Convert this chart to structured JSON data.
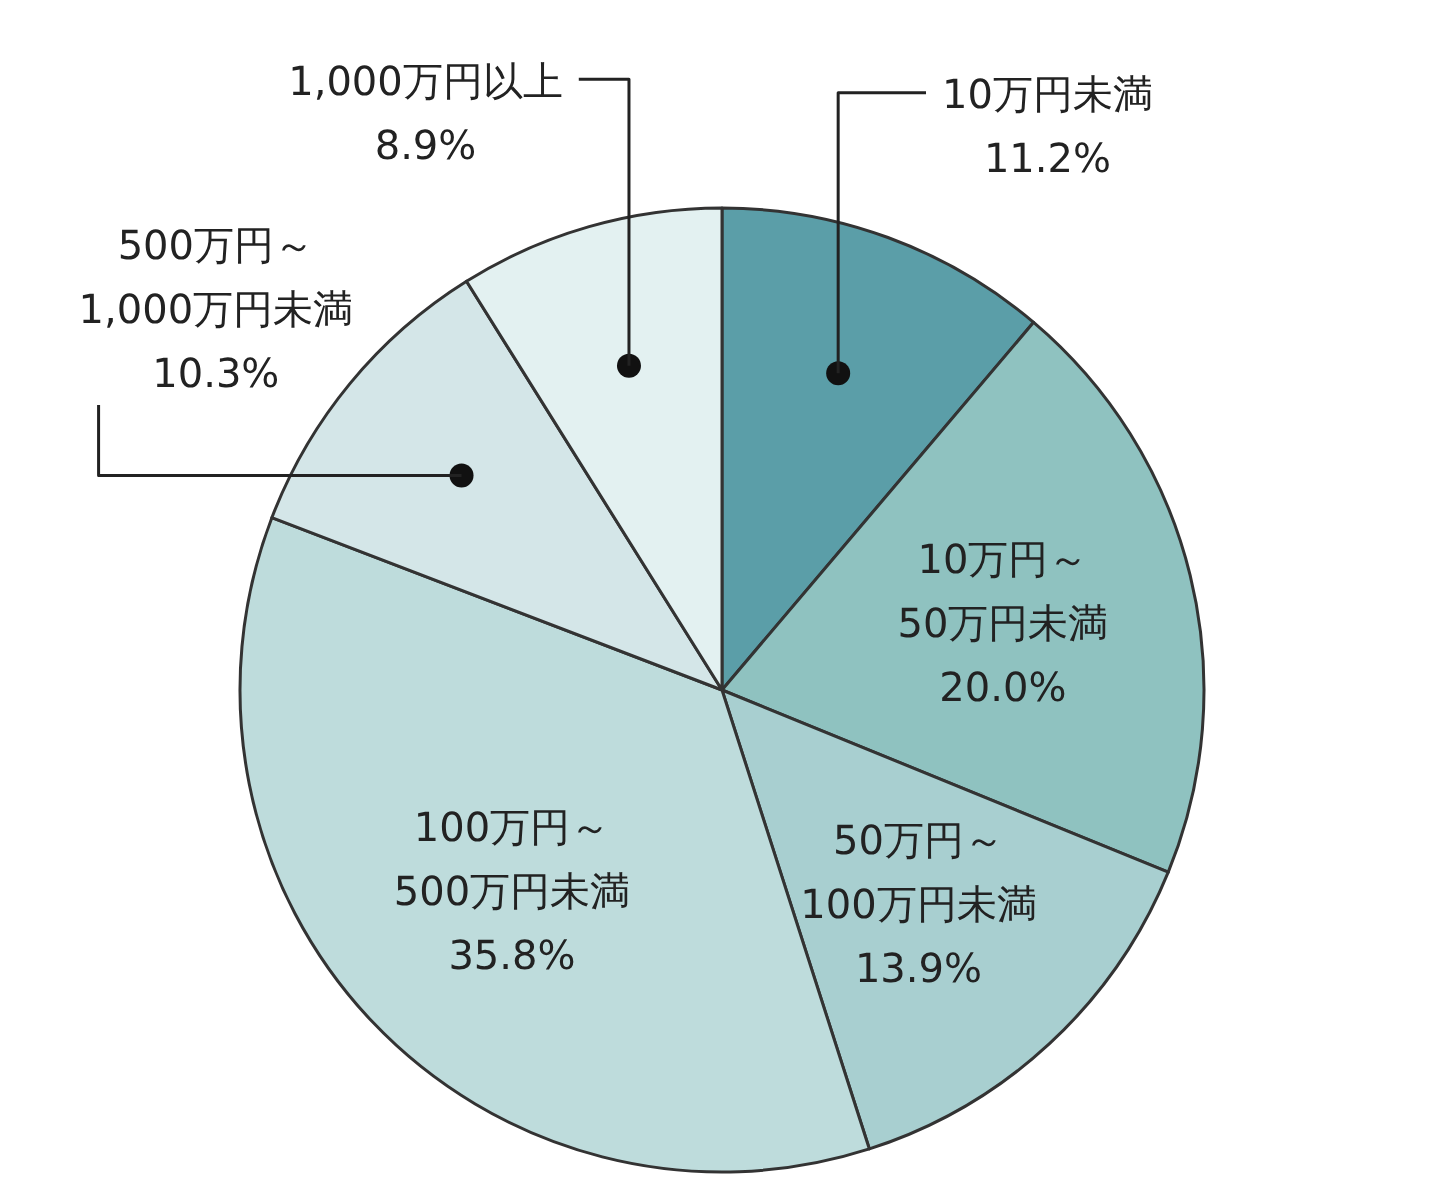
{
  "chart_data": {
    "type": "pie",
    "categories": [
      "10万円未満",
      "10万円～50万円未満",
      "50万円～100万円未満",
      "100万円～500万円未満",
      "500万円～1,000万円未満",
      "1,000万円以上"
    ],
    "values": [
      11.2,
      20.0,
      13.9,
      35.8,
      10.3,
      8.9
    ],
    "colors": [
      "#5b9ea8",
      "#8fc2c0",
      "#a8cfd0",
      "#bedcdc",
      "#d4e6e8",
      "#e3f1f1"
    ],
    "value_labels": [
      "11.2%",
      "20.0%",
      "13.9%",
      "35.8%",
      "10.3%",
      "8.9%"
    ]
  }
}
